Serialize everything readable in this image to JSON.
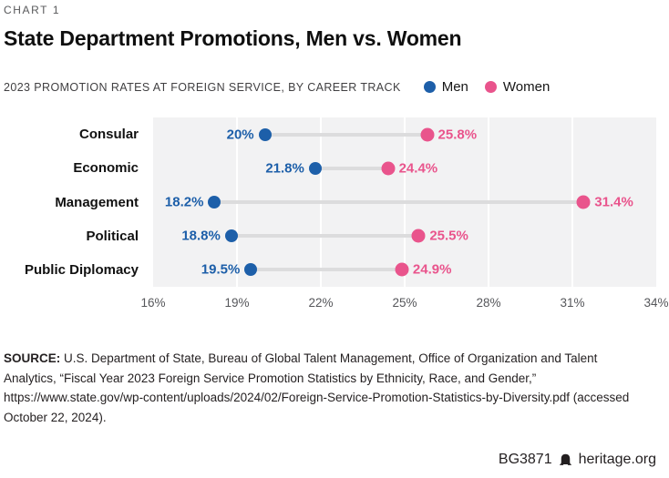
{
  "kicker": "CHART 1",
  "title": "State Department Promotions, Men vs. Women",
  "subtitle": "2023 PROMOTION RATES AT FOREIGN SERVICE, BY CAREER TRACK",
  "legend": [
    {
      "label": "Men",
      "color": "#1d5fa9"
    },
    {
      "label": "Women",
      "color": "#e9548c"
    }
  ],
  "chart_data": {
    "type": "scatter",
    "variant": "dumbbell",
    "categories": [
      "Consular",
      "Economic",
      "Management",
      "Political",
      "Public Diplomacy"
    ],
    "series": [
      {
        "name": "Men",
        "color": "#1d5fa9",
        "dot_size": 14,
        "values": [
          20,
          21.8,
          18.2,
          18.8,
          19.5
        ],
        "labels": [
          "20%",
          "21.8%",
          "18.2%",
          "18.8%",
          "19.5%"
        ]
      },
      {
        "name": "Women",
        "color": "#e9548c",
        "dot_size": 15,
        "values": [
          25.8,
          24.4,
          31.4,
          25.5,
          24.9
        ],
        "labels": [
          "25.8%",
          "24.4%",
          "31.4%",
          "25.5%",
          "24.9%"
        ]
      }
    ],
    "xlim": [
      16,
      34
    ],
    "xticks": [
      16,
      19,
      22,
      25,
      28,
      31,
      34
    ],
    "xtick_labels": [
      "16%",
      "19%",
      "22%",
      "25%",
      "28%",
      "31%",
      "34%"
    ],
    "grid": "vertical white gridlines on gray panel",
    "legend_position": "top-right",
    "panel_color": "#f2f2f3",
    "gridline_color": "#ffffff",
    "connector_color": "#dcdcdd",
    "axis_text_color": "#56575b"
  },
  "source": {
    "label": "SOURCE:",
    "text": " U.S. Department of State, Bureau of Global Talent Management, Office of Organization and Talent Analytics, “Fiscal Year 2023 Foreign Service Promotion Statistics by Ethnicity, Race, and Gender,” https://www.state.gov/wp-content/uploads/2024/02/Foreign-Service-Promotion-Statistics-by-Diversity.pdf (accessed October 22, 2024)."
  },
  "footer": {
    "report_id": "BG3871",
    "site": "heritage.org"
  }
}
